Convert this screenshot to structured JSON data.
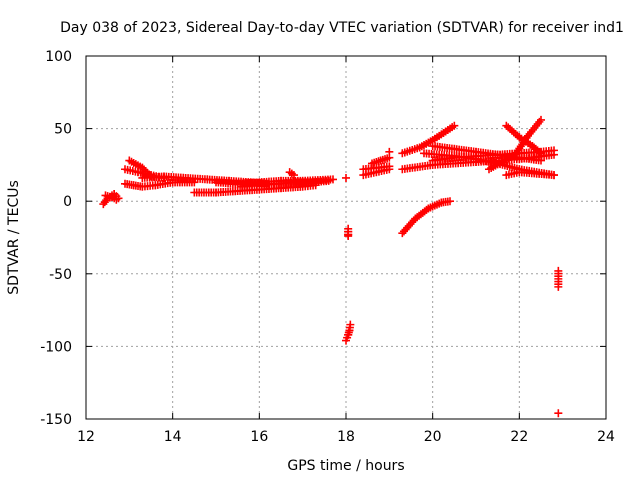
{
  "chart_data": {
    "type": "scatter",
    "title": "Day 038 of 2023, Sidereal Day-to-day VTEC variation (SDTVAR) for receiver ind1",
    "xlabel": "GPS time / hours",
    "ylabel": "SDTVAR / TECUs",
    "xlim": [
      12,
      24
    ],
    "ylim": [
      -150,
      100
    ],
    "xticks": [
      12,
      14,
      16,
      18,
      20,
      22,
      24
    ],
    "yticks": [
      -150,
      -100,
      -50,
      0,
      50,
      100
    ],
    "xtick_labels": [
      "12",
      "14",
      "16",
      "18",
      "20",
      "22",
      "24"
    ],
    "ytick_labels": [
      "-150",
      "-100",
      "-50",
      "0",
      "50",
      "100"
    ],
    "grid": true,
    "marker": "plus",
    "color": "#ff0000",
    "segments": [
      {
        "x": [
          12.4,
          12.5,
          12.6,
          12.7
        ],
        "y": [
          -2,
          2,
          3,
          1
        ]
      },
      {
        "x": [
          12.45,
          12.55,
          12.65,
          12.75
        ],
        "y": [
          4,
          3,
          5,
          2
        ]
      },
      {
        "x": [
          12.9,
          13.1,
          13.3,
          13.6,
          14.0,
          14.5
        ],
        "y": [
          12,
          11,
          10,
          11,
          13,
          13
        ]
      },
      {
        "x": [
          12.9,
          13.2,
          13.5,
          13.8
        ],
        "y": [
          22,
          20,
          18,
          16
        ]
      },
      {
        "x": [
          13.0,
          13.3,
          13.5,
          13.8
        ],
        "y": [
          28,
          23,
          17,
          16
        ]
      },
      {
        "x": [
          13.3,
          13.8,
          14.3,
          14.8,
          15.3,
          15.8,
          16.2
        ],
        "y": [
          16,
          17,
          16,
          15,
          14,
          13,
          12
        ]
      },
      {
        "x": [
          14.5,
          15.0,
          15.5,
          16.0,
          16.5,
          17.0,
          17.3
        ],
        "y": [
          6,
          6,
          7,
          8,
          9,
          10,
          11
        ]
      },
      {
        "x": [
          15.0,
          15.5,
          16.0,
          16.5,
          17.0,
          17.7
        ],
        "y": [
          13,
          12,
          13,
          14,
          14,
          15
        ]
      },
      {
        "x": [
          15.6,
          16.0,
          16.4,
          16.8,
          17.2,
          17.6
        ],
        "y": [
          10,
          11,
          12,
          13,
          13,
          14
        ]
      },
      {
        "x": [
          16.7,
          16.8
        ],
        "y": [
          20,
          18
        ]
      },
      {
        "x": [
          18.0
        ],
        "y": [
          16
        ]
      },
      {
        "x": [
          18.05,
          18.05,
          18.05,
          18.05
        ],
        "y": [
          -19,
          -21,
          -23,
          -24
        ]
      },
      {
        "x": [
          18.0,
          18.05,
          18.08,
          18.1
        ],
        "y": [
          -96,
          -92,
          -89,
          -85
        ]
      },
      {
        "x": [
          18.4,
          18.7,
          19.0
        ],
        "y": [
          18,
          20,
          22
        ]
      },
      {
        "x": [
          18.4,
          18.7,
          19.0
        ],
        "y": [
          22,
          23,
          24
        ]
      },
      {
        "x": [
          18.6,
          18.8,
          19.0
        ],
        "y": [
          26,
          28,
          30
        ]
      },
      {
        "x": [
          19.0
        ],
        "y": [
          34
        ]
      },
      {
        "x": [
          19.3,
          19.6,
          19.9,
          20.2,
          20.4
        ],
        "y": [
          -22,
          -12,
          -5,
          -1,
          0
        ]
      },
      {
        "x": [
          19.3,
          20.0,
          21.0,
          22.0,
          22.8
        ],
        "y": [
          22,
          25,
          27,
          29,
          32
        ]
      },
      {
        "x": [
          19.3,
          19.7,
          20.0,
          20.3,
          20.5
        ],
        "y": [
          33,
          37,
          42,
          48,
          52
        ]
      },
      {
        "x": [
          19.8,
          20.5,
          21.0,
          21.5,
          22.0,
          22.8
        ],
        "y": [
          33,
          31,
          29,
          26,
          22,
          18
        ]
      },
      {
        "x": [
          20.0,
          20.5,
          21.0,
          21.5,
          22.0,
          22.5,
          22.8
        ],
        "y": [
          28,
          30,
          31,
          32,
          33,
          34,
          35
        ]
      },
      {
        "x": [
          20.0,
          20.5,
          21.0,
          21.5,
          22.0,
          22.5
        ],
        "y": [
          38,
          36,
          34,
          32,
          30,
          28
        ]
      },
      {
        "x": [
          21.3,
          21.6,
          21.9,
          22.2,
          22.5
        ],
        "y": [
          22,
          27,
          32,
          45,
          56
        ]
      },
      {
        "x": [
          21.7,
          22.0,
          22.3,
          22.5
        ],
        "y": [
          52,
          44,
          38,
          33
        ]
      },
      {
        "x": [
          21.7,
          22.0,
          22.4,
          22.8
        ],
        "y": [
          18,
          20,
          19,
          18
        ]
      },
      {
        "x": [
          22.9,
          22.9
        ],
        "y": [
          -48,
          -59
        ]
      },
      {
        "x": [
          22.9
        ],
        "y": [
          -146
        ]
      }
    ]
  }
}
